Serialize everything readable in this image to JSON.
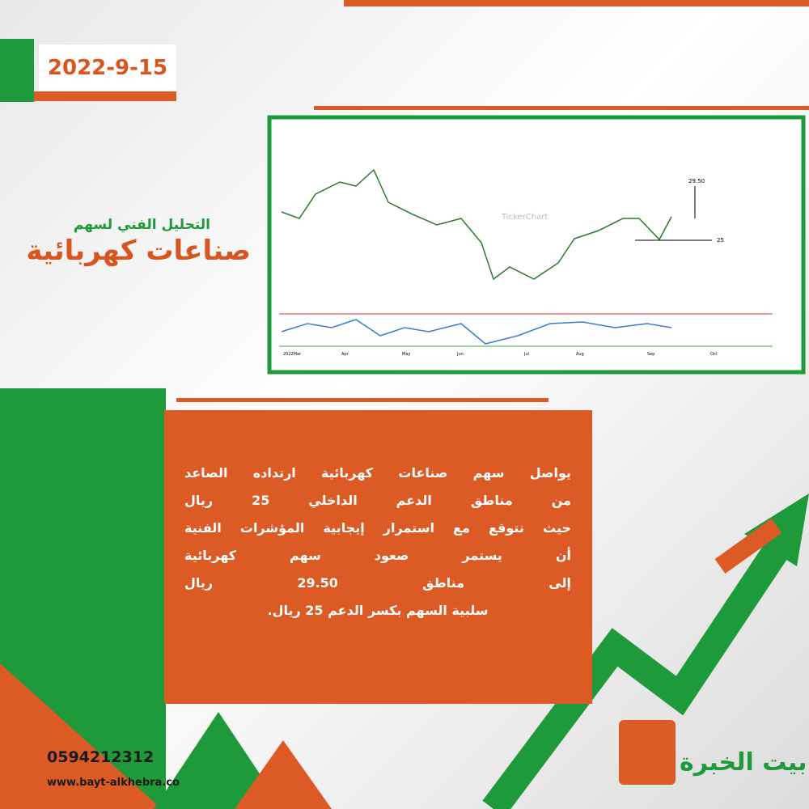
{
  "header": {
    "date": "2022-9-15",
    "subtitle": "التحليل الفني لسهم",
    "title": "صناعات كهربائية"
  },
  "chart_image": {
    "watermark": "TickerChart",
    "target": "29.50",
    "support": "25",
    "months": [
      "2022Mar",
      "Apr",
      "May",
      "Jun",
      "Jul",
      "Aug",
      "Sep",
      "Oct"
    ]
  },
  "body": {
    "lines": [
      "يواصل سهم صناعات كهربائية ارتداده الصاعد",
      "من مناطق الدعم الداخلي 25 ريال",
      "حيث نتوقع مع استمرار إيجابية المؤشرات الفنية",
      "أن يستمر صعود سهم كهربائية",
      "إلى مناطق 29.50 ريال",
      "سلبية السهم بكسر الدعم 25 ريال."
    ]
  },
  "footer": {
    "phone": "0594212312",
    "website": "www.bayt-alkhebra.co",
    "logo": "بيت الخبرة"
  }
}
